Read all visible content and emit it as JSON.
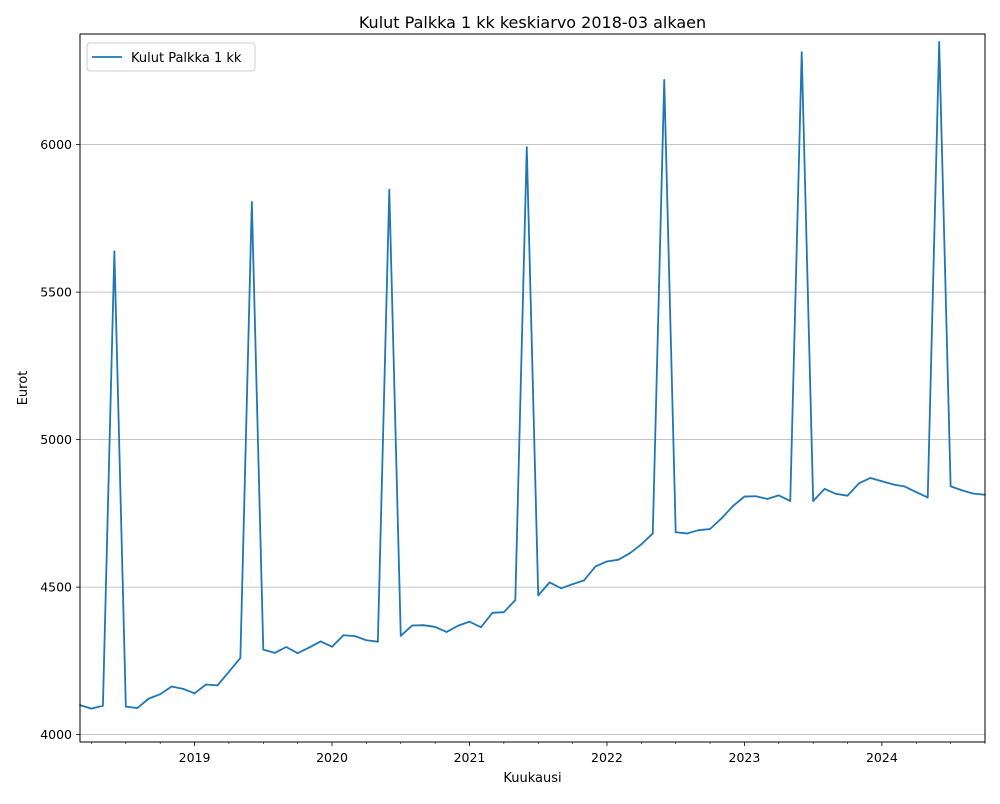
{
  "chart_data": {
    "type": "line",
    "title": "Kulut Palkka 1 kk keskiarvo 2018-03 alkaen",
    "xlabel": "Kuukausi",
    "ylabel": "Eurot",
    "x_start": "2018-03",
    "xlim": [
      "2018-03",
      "2024-10"
    ],
    "ylim": [
      3975,
      6375
    ],
    "x_ticks": [
      "2019",
      "2020",
      "2021",
      "2022",
      "2023",
      "2024"
    ],
    "y_ticks": [
      4000,
      4500,
      5000,
      5500,
      6000
    ],
    "grid": "horizontal",
    "legend_position": "top-left",
    "series": [
      {
        "name": "Kulut Palkka 1 kk",
        "color": "#1f77b4",
        "x": [
          "2018-03",
          "2018-04",
          "2018-05",
          "2018-06",
          "2018-07",
          "2018-08",
          "2018-09",
          "2018-10",
          "2018-11",
          "2018-12",
          "2019-01",
          "2019-02",
          "2019-03",
          "2019-04",
          "2019-05",
          "2019-06",
          "2019-07",
          "2019-08",
          "2019-09",
          "2019-10",
          "2019-11",
          "2019-12",
          "2020-01",
          "2020-02",
          "2020-03",
          "2020-04",
          "2020-05",
          "2020-06",
          "2020-07",
          "2020-08",
          "2020-09",
          "2020-10",
          "2020-11",
          "2020-12",
          "2021-01",
          "2021-02",
          "2021-03",
          "2021-04",
          "2021-05",
          "2021-06",
          "2021-07",
          "2021-08",
          "2021-09",
          "2021-10",
          "2021-11",
          "2021-12",
          "2022-01",
          "2022-02",
          "2022-03",
          "2022-04",
          "2022-05",
          "2022-06",
          "2022-07",
          "2022-08",
          "2022-09",
          "2022-10",
          "2022-11",
          "2022-12",
          "2023-01",
          "2023-02",
          "2023-03",
          "2023-04",
          "2023-05",
          "2023-06",
          "2023-07",
          "2023-08",
          "2023-09",
          "2023-10",
          "2023-11",
          "2023-12",
          "2024-01",
          "2024-02",
          "2024-03",
          "2024-04",
          "2024-05",
          "2024-06",
          "2024-07",
          "2024-08",
          "2024-09",
          "2024-10"
        ],
        "values": [
          4100,
          4088,
          4098,
          5638,
          4095,
          4090,
          4122,
          4137,
          4163,
          4155,
          4140,
          4170,
          4167,
          4213,
          4260,
          5805,
          4288,
          4277,
          4297,
          4276,
          4295,
          4316,
          4298,
          4337,
          4334,
          4320,
          4315,
          5847,
          4335,
          4370,
          4371,
          4365,
          4348,
          4369,
          4383,
          4364,
          4413,
          4415,
          4456,
          5991,
          4472,
          4516,
          4496,
          4510,
          4523,
          4570,
          4587,
          4593,
          4615,
          4645,
          4682,
          6219,
          4686,
          4682,
          4693,
          4697,
          4733,
          4775,
          4807,
          4808,
          4799,
          4811,
          4792,
          6313,
          4792,
          4833,
          4816,
          4810,
          4852,
          4870,
          4859,
          4848,
          4841,
          4822,
          4804,
          6348,
          4842,
          4828,
          4817,
          4813
        ]
      }
    ]
  }
}
